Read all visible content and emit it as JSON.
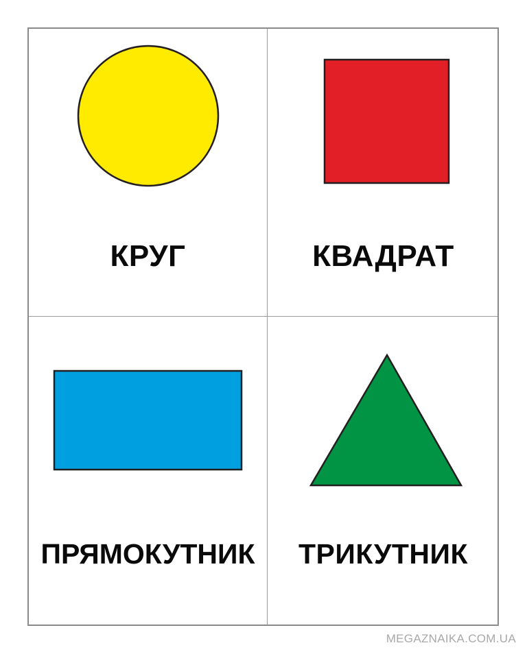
{
  "cards": [
    {
      "label": "КРУГ",
      "shape": "circle",
      "color": "#FFEB00"
    },
    {
      "label": "КВАДРАТ",
      "shape": "square",
      "color": "#E21E26"
    },
    {
      "label": "ПРЯМОКУТНИК",
      "shape": "rectangle",
      "color": "#00A0E0"
    },
    {
      "label": "ТРИКУТНИК",
      "shape": "triangle",
      "color": "#009444"
    }
  ],
  "outline_color": "#231F20",
  "watermark": "MEGAZNAIKA.COM.UA"
}
